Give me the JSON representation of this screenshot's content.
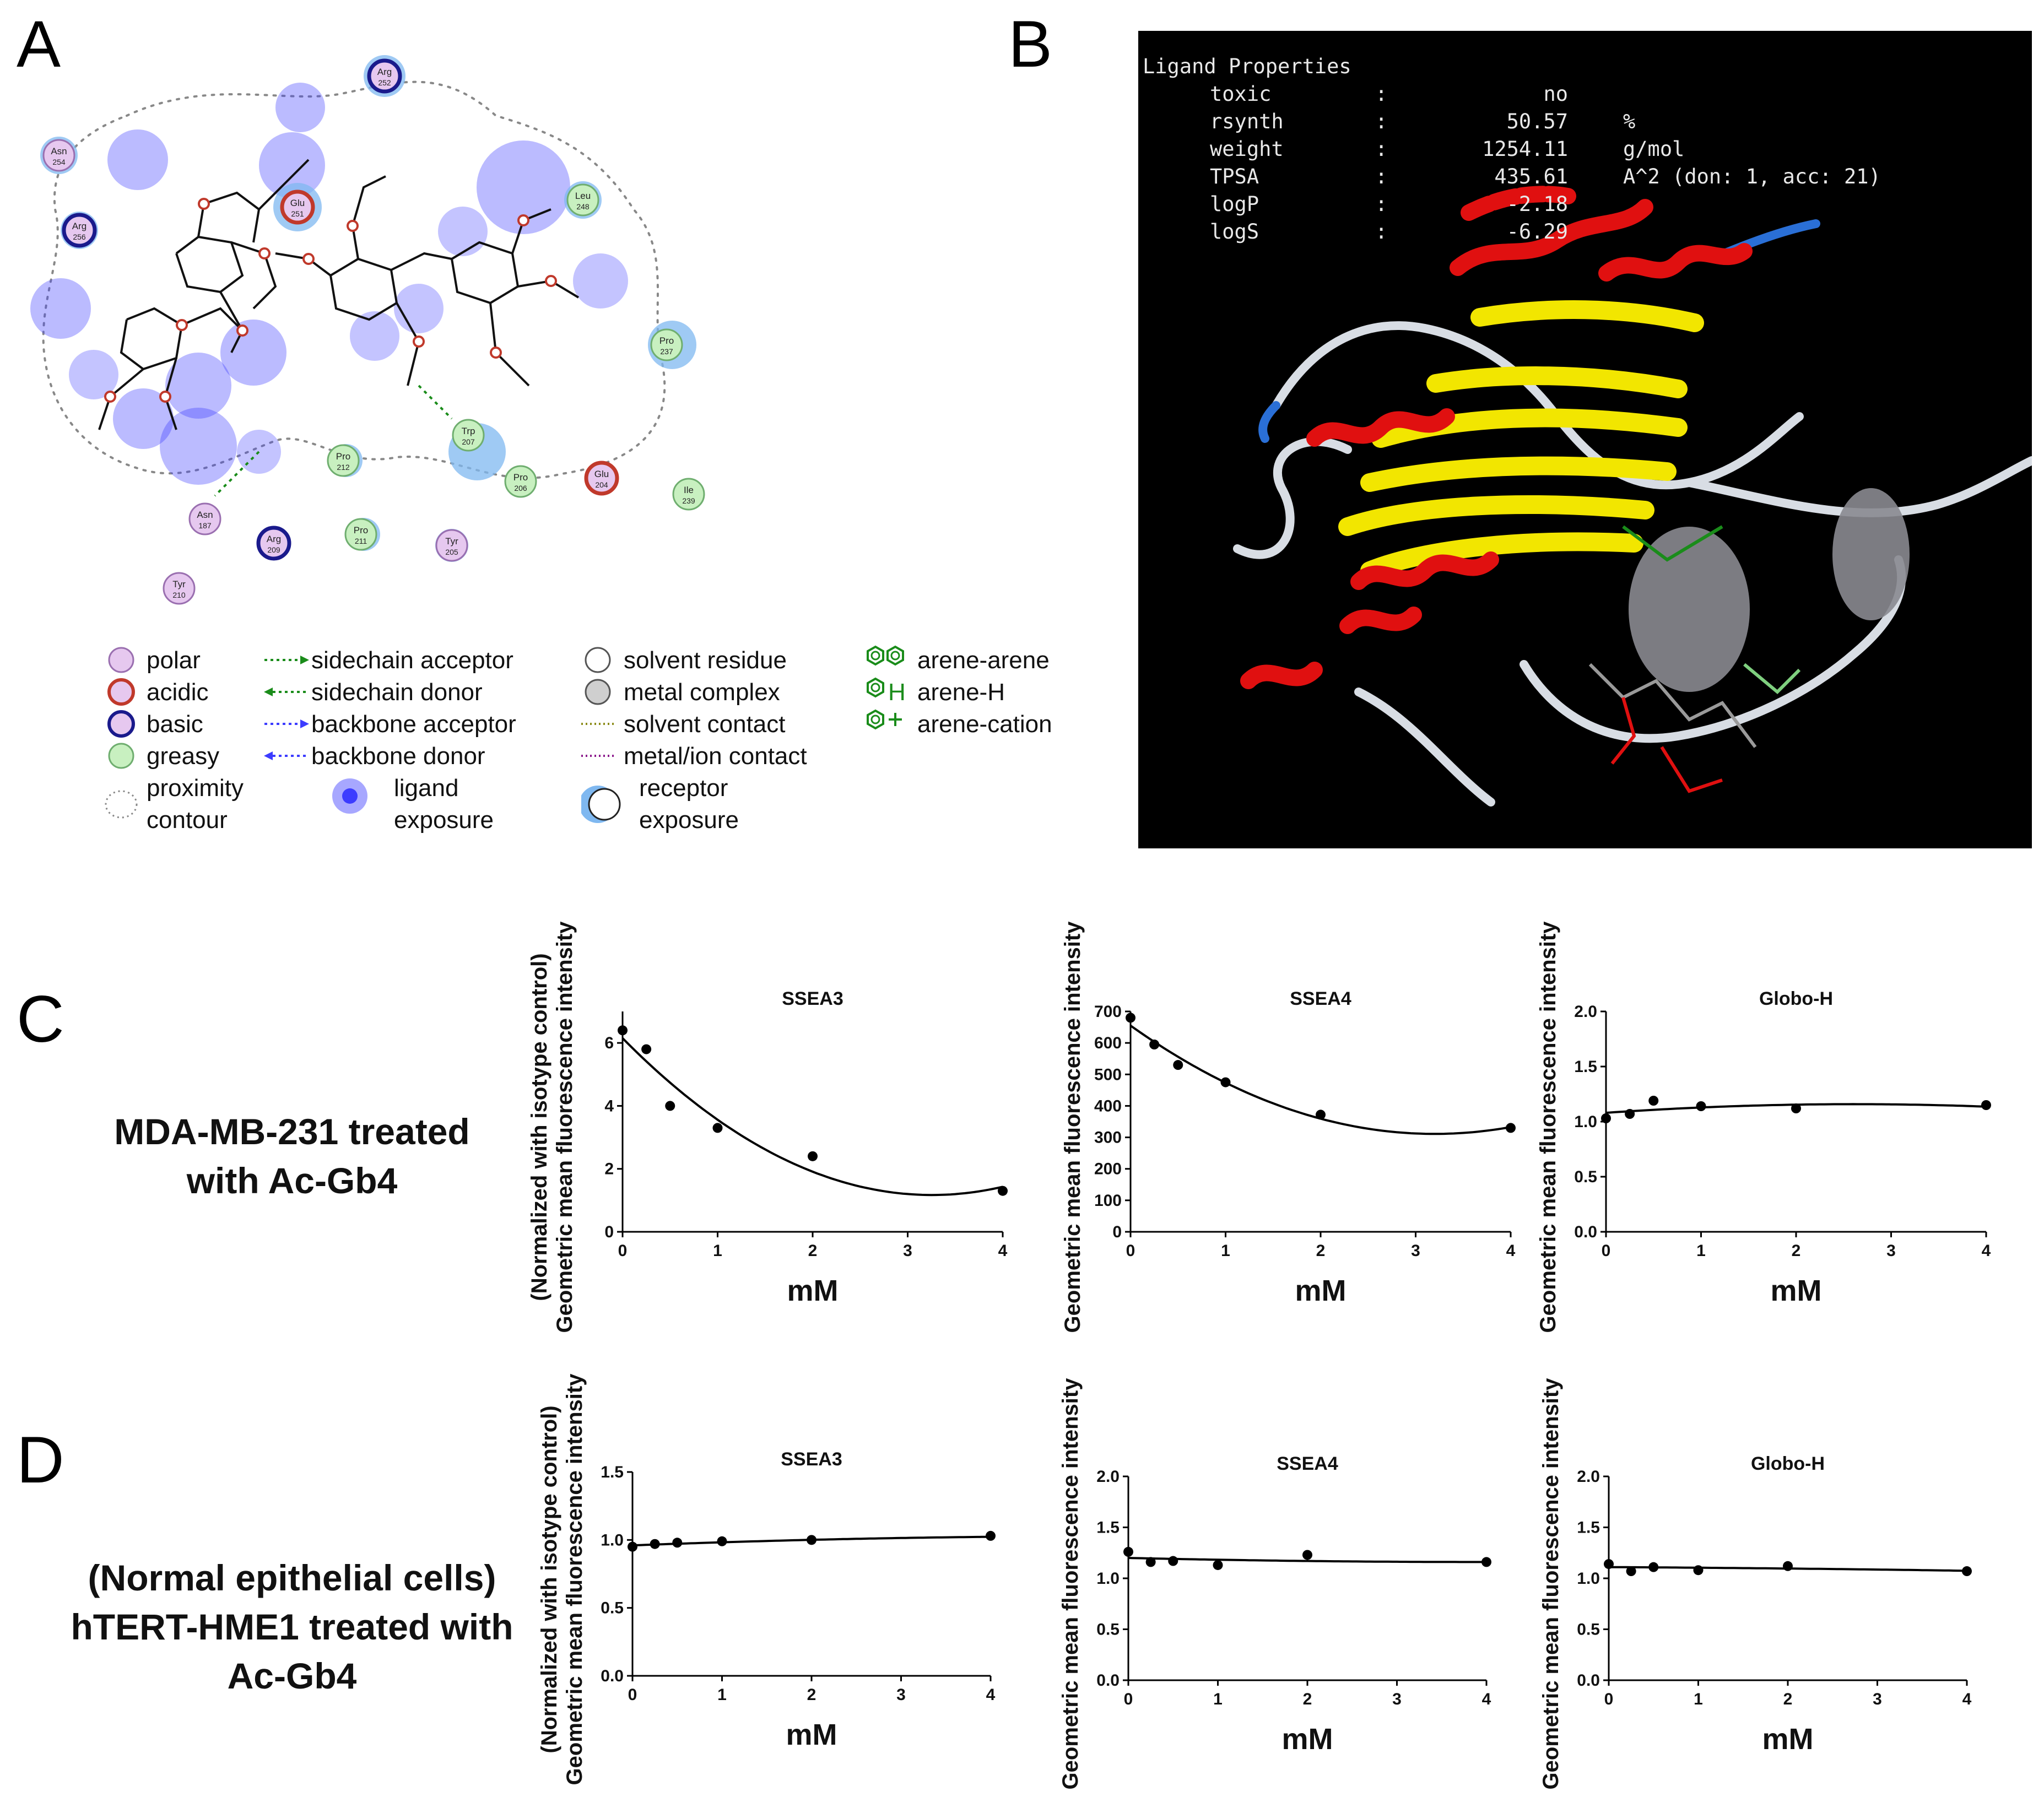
{
  "panels": {
    "A": {
      "letter": "A"
    },
    "B": {
      "letter": "B"
    },
    "C": {
      "letter": "C",
      "row_label": [
        "MDA-MB-231 treated",
        "with Ac-Gb4"
      ]
    },
    "D": {
      "letter": "D",
      "row_label": [
        "(Normal epithelial cells)",
        "hTERT-HME1 treated with",
        "Ac-Gb4"
      ]
    }
  },
  "residues": [
    {
      "name": "Arg",
      "num": "252",
      "type": "basic",
      "exposure": true
    },
    {
      "name": "Asn",
      "num": "254",
      "type": "polar",
      "exposure": true
    },
    {
      "name": "Arg",
      "num": "256",
      "type": "basic",
      "exposure": true
    },
    {
      "name": "Glu",
      "num": "251",
      "type": "acidic",
      "exposure": true
    },
    {
      "name": "Leu",
      "num": "248",
      "type": "greasy",
      "exposure": true
    },
    {
      "name": "Pro",
      "num": "237",
      "type": "greasy",
      "exposure": true
    },
    {
      "name": "Trp",
      "num": "207",
      "type": "greasy",
      "exposure": true
    },
    {
      "name": "Pro",
      "num": "212",
      "type": "greasy",
      "exposure": true
    },
    {
      "name": "Pro",
      "num": "206",
      "type": "greasy",
      "exposure": false
    },
    {
      "name": "Glu",
      "num": "204",
      "type": "acidic",
      "exposure": false
    },
    {
      "name": "Ile",
      "num": "239",
      "type": "greasy",
      "exposure": false
    },
    {
      "name": "Asn",
      "num": "187",
      "type": "polar",
      "exposure": false
    },
    {
      "name": "Arg",
      "num": "209",
      "type": "basic",
      "exposure": false
    },
    {
      "name": "Pro",
      "num": "211",
      "type": "greasy",
      "exposure": true
    },
    {
      "name": "Tyr",
      "num": "205",
      "type": "polar",
      "exposure": true
    },
    {
      "name": "Tyr",
      "num": "210",
      "type": "polar",
      "exposure": false
    }
  ],
  "legend": {
    "col1": [
      "polar",
      "acidic",
      "basic",
      "greasy",
      "proximity",
      "contour"
    ],
    "col2": [
      "sidechain acceptor",
      "sidechain donor",
      "backbone acceptor",
      "backbone donor",
      "ligand",
      "exposure"
    ],
    "col3": [
      "solvent residue",
      "metal complex",
      "solvent contact",
      "metal/ion contact",
      "receptor",
      "exposure"
    ],
    "col4": [
      "arene-arene",
      "arene-H",
      "arene-cation"
    ],
    "arene_h_symbol": "H"
  },
  "ligand_properties": {
    "header": "Ligand Properties",
    "rows": [
      {
        "key": "toxic",
        "sep": ":",
        "value": "no",
        "unit": ""
      },
      {
        "key": "rsynth",
        "sep": ":",
        "value": "50.57",
        "unit": "%"
      },
      {
        "key": "weight",
        "sep": ":",
        "value": "1254.11",
        "unit": "g/mol"
      },
      {
        "key": "TPSA",
        "sep": ":",
        "value": "435.61",
        "unit": "A^2 (don: 1, acc: 21)"
      },
      {
        "key": "logP",
        "sep": ":",
        "value": "-2.18",
        "unit": ""
      },
      {
        "key": "logS",
        "sep": ":",
        "value": "-6.29",
        "unit": ""
      }
    ]
  },
  "colors": {
    "helix": "#e01010",
    "sheet": "#f2e600",
    "coil": "#d8dde4",
    "turn": "#2a6fd6",
    "polar": "#e6c8ef",
    "acidic": "#c0392b",
    "basic": "#1a1a8c",
    "greasy": "#c8f0c0",
    "exposure": "#3c3cff",
    "receptor_exposure": "#7fb8f0"
  },
  "chart_data": [
    {
      "id": "C-SSEA3",
      "type": "scatter",
      "title": "SSEA3",
      "xlabel": "mM",
      "ylabel_lines": [
        "(Normalized with isotype control)",
        "Geometric mean fluorescence intensity"
      ],
      "xlim": [
        0,
        4
      ],
      "ylim": [
        0,
        7
      ],
      "xticks": [
        "0",
        "1",
        "2",
        "3",
        "4"
      ],
      "yticks": [
        "0",
        "2",
        "4",
        "6"
      ],
      "x": [
        0,
        0.25,
        0.5,
        1,
        2,
        4
      ],
      "y": [
        6.4,
        5.8,
        4.0,
        3.3,
        2.4,
        1.3
      ],
      "fit": [
        6.15,
        -3.06,
        0.47
      ]
    },
    {
      "id": "C-SSEA4",
      "type": "scatter",
      "title": "SSEA4",
      "xlabel": "mM",
      "ylabel_lines": [
        "Geometric mean fluorescence intensity"
      ],
      "xlim": [
        0,
        4
      ],
      "ylim": [
        0,
        700
      ],
      "xticks": [
        "0",
        "1",
        "2",
        "3",
        "4"
      ],
      "yticks": [
        "0",
        "100",
        "200",
        "300",
        "400",
        "500",
        "600",
        "700"
      ],
      "x": [
        0,
        0.25,
        0.5,
        1,
        2,
        4
      ],
      "y": [
        680,
        595,
        530,
        475,
        372,
        330
      ],
      "fit": [
        655,
        -215,
        33.6
      ]
    },
    {
      "id": "C-GloboH",
      "type": "scatter",
      "title": "Globo-H",
      "xlabel": "mM",
      "ylabel_lines": [
        "Geometric mean fluorescence intensity"
      ],
      "xlim": [
        0,
        4
      ],
      "ylim": [
        0,
        2.0
      ],
      "xticks": [
        "0",
        "1",
        "2",
        "3",
        "4"
      ],
      "yticks": [
        "0.0",
        "0.5",
        "1.0",
        "1.5",
        "2.0"
      ],
      "x": [
        0,
        0.25,
        0.5,
        1,
        2,
        4
      ],
      "y": [
        1.03,
        1.07,
        1.19,
        1.14,
        1.12,
        1.15
      ],
      "fit": [
        1.08,
        0.06,
        -0.0115
      ]
    },
    {
      "id": "D-SSEA3",
      "type": "scatter",
      "title": "SSEA3",
      "xlabel": "mM",
      "ylabel_lines": [
        "(Normalized with isotype control)",
        "Geometric mean fluorescence intensity"
      ],
      "xlim": [
        0,
        4
      ],
      "ylim": [
        0,
        1.5
      ],
      "xticks": [
        "0",
        "1",
        "2",
        "3",
        "4"
      ],
      "yticks": [
        "0.0",
        "0.5",
        "1.0",
        "1.5"
      ],
      "x": [
        0,
        0.25,
        0.5,
        1,
        2,
        4
      ],
      "y": [
        0.95,
        0.97,
        0.98,
        0.99,
        1.0,
        1.03
      ],
      "fit": [
        0.96,
        0.025,
        -0.0023
      ]
    },
    {
      "id": "D-SSEA4",
      "type": "scatter",
      "title": "SSEA4",
      "xlabel": "mM",
      "ylabel_lines": [
        "Geometric mean fluorescence intensity"
      ],
      "xlim": [
        0,
        4
      ],
      "ylim": [
        0,
        2.0
      ],
      "xticks": [
        "0",
        "1",
        "2",
        "3",
        "4"
      ],
      "yticks": [
        "0.0",
        "0.5",
        "1.0",
        "1.5",
        "2.0"
      ],
      "x": [
        0,
        0.25,
        0.5,
        1,
        2,
        4
      ],
      "y": [
        1.26,
        1.16,
        1.17,
        1.13,
        1.23,
        1.16
      ],
      "fit": [
        1.2,
        -0.02,
        0.0025
      ]
    },
    {
      "id": "D-GloboH",
      "type": "scatter",
      "title": "Globo-H",
      "xlabel": "mM",
      "ylabel_lines": [
        "Geometric mean fluorescence intensity"
      ],
      "xlim": [
        0,
        4
      ],
      "ylim": [
        0,
        2.0
      ],
      "xticks": [
        "0",
        "1",
        "2",
        "3",
        "4"
      ],
      "yticks": [
        "0.0",
        "0.5",
        "1.0",
        "1.5",
        "2.0"
      ],
      "x": [
        0,
        0.25,
        0.5,
        1,
        2,
        4
      ],
      "y": [
        1.14,
        1.07,
        1.11,
        1.08,
        1.12,
        1.07
      ],
      "fit": [
        1.11,
        -0.005,
        -0.001
      ]
    }
  ]
}
